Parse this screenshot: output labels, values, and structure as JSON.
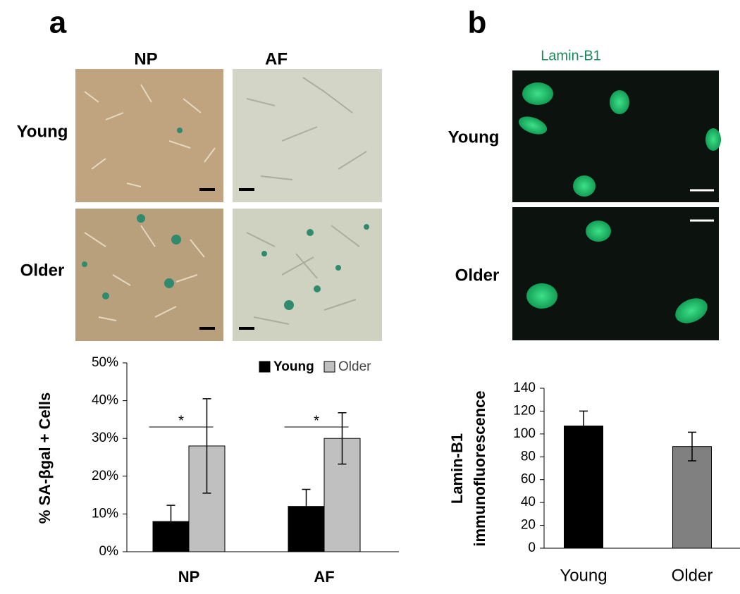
{
  "panels": [
    {
      "label": "a",
      "columns": [
        "NP",
        "AF"
      ],
      "rows": [
        "Young",
        "Older"
      ]
    },
    {
      "label": "b",
      "title": "Lamin-B1",
      "rows": [
        "Young",
        "Older"
      ]
    }
  ],
  "chart_data": [
    {
      "type": "bar",
      "ylabel": "% SA-βgal + Cells",
      "categories": [
        "NP",
        "AF"
      ],
      "series": [
        {
          "name": "Young",
          "color": "#000000",
          "values": [
            8,
            12
          ],
          "errors": [
            4.3,
            4.5
          ]
        },
        {
          "name": "Older",
          "color": "#c0c0c0",
          "values": [
            28,
            30
          ],
          "errors": [
            12.5,
            6.8
          ]
        }
      ],
      "annotations": [
        "*",
        "*"
      ],
      "ylim": [
        0,
        50
      ],
      "yticks": [
        {
          "value": 0,
          "label": "0%"
        },
        {
          "value": 10,
          "label": "10%"
        },
        {
          "value": 20,
          "label": "20%"
        },
        {
          "value": 30,
          "label": "30%"
        },
        {
          "value": 40,
          "label": "40%"
        },
        {
          "value": 50,
          "label": "50%"
        }
      ],
      "legend": "top-right"
    },
    {
      "type": "bar",
      "ylabel": [
        "Lamin-B1",
        "immunofluorescence"
      ],
      "categories": [
        "Young",
        "Older"
      ],
      "values": [
        107,
        89
      ],
      "errors": [
        13,
        12.5
      ],
      "colors": [
        "#000000",
        "#808080"
      ],
      "ylim": [
        0,
        140
      ],
      "yticks": [
        0,
        20,
        40,
        60,
        80,
        100,
        120,
        140
      ]
    }
  ]
}
